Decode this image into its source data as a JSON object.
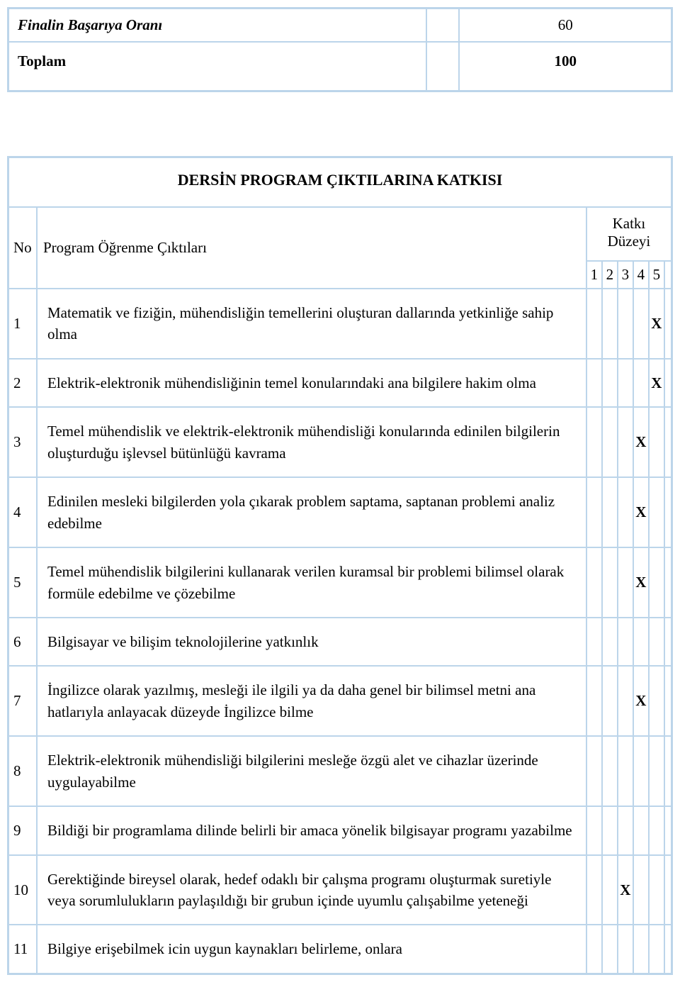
{
  "topTable": {
    "rows": [
      {
        "label": "Finalin Başarıya Oranı",
        "value": "60",
        "labelClass": "italic",
        "valueClass": "",
        "tall": false
      },
      {
        "label": "Toplam",
        "value": "100",
        "labelClass": "bold",
        "valueClass": "bold",
        "tall": true
      }
    ]
  },
  "contrib": {
    "title": "DERSİN PROGRAM ÇIKTILARINA KATKISI",
    "headerNo": "No",
    "headerOutcome": "Program Öğrenme Çıktıları",
    "headerLevel": "Katkı Düzeyi",
    "levels": [
      "1",
      "2",
      "3",
      "4",
      "5"
    ],
    "mark": "X",
    "rows": [
      {
        "no": "1",
        "text": "Matematik ve fiziğin, mühendisliğin temellerini oluşturan dallarında yetkinliğe sahip olma",
        "level": 5
      },
      {
        "no": "2",
        "text": "Elektrik-elektronik mühendisliğinin temel konularındaki ana bilgilere hakim olma",
        "level": 5
      },
      {
        "no": "3",
        "text": "Temel mühendislik ve elektrik-elektronik mühendisliği konularında edinilen bilgilerin oluşturduğu işlevsel bütünlüğü kavrama",
        "level": 4
      },
      {
        "no": "4",
        "text": "Edinilen mesleki bilgilerden yola çıkarak problem saptama, saptanan problemi analiz edebilme",
        "level": 4
      },
      {
        "no": "5",
        "text": "Temel mühendislik bilgilerini kullanarak verilen kuramsal bir problemi bilimsel olarak formüle edebilme ve çözebilme",
        "level": 4
      },
      {
        "no": "6",
        "text": "Bilgisayar ve bilişim teknolojilerine yatkınlık",
        "level": 0
      },
      {
        "no": "7",
        "text": "İngilizce olarak yazılmış, mesleği ile ilgili ya da daha genel bir bilimsel metni ana hatlarıyla anlayacak düzeyde İngilizce bilme",
        "level": 4
      },
      {
        "no": "8",
        "text": "Elektrik-elektronik mühendisliği bilgilerini mesleğe özgü alet ve cihazlar üzerinde uygulayabilme",
        "level": 0
      },
      {
        "no": "9",
        "text": "Bildiği bir programlama dilinde belirli bir amaca yönelik bilgisayar programı yazabilme",
        "level": 0
      },
      {
        "no": "10",
        "text": "Gerektiğinde bireysel olarak, hedef odaklı bir çalışma programı oluşturmak suretiyle veya sorumlulukların paylaşıldığı bir grubun içinde uyumlu çalışabilme yeteneği",
        "level": 3
      },
      {
        "no": "11",
        "text": "Bilgiye erişebilmek icin uygun kaynakları belirleme, onlara",
        "level": 0
      }
    ]
  }
}
